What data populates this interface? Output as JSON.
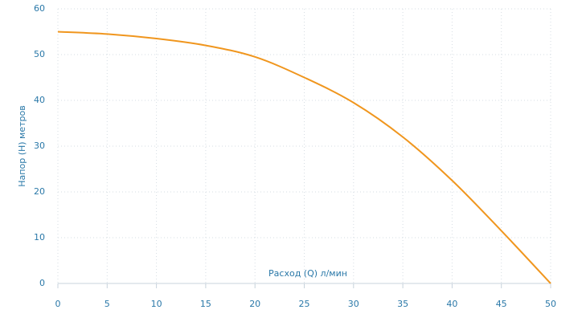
{
  "chart_data": {
    "type": "line",
    "x_label": "Расход (Q) л/мин",
    "y_label": "Напор (H) метров",
    "x": [
      0,
      5,
      10,
      15,
      20,
      25,
      30,
      35,
      40,
      45,
      50
    ],
    "series": [
      {
        "color": "#f0961e",
        "values": [
          55,
          54.5,
          53.5,
          52,
          49.5,
          45,
          39.5,
          32,
          22.5,
          11.5,
          0
        ]
      }
    ],
    "xlim": [
      0,
      50
    ],
    "xticks": [
      0,
      5,
      10,
      15,
      20,
      25,
      30,
      35,
      40,
      45,
      50
    ],
    "ylim": [
      0,
      60
    ],
    "yticks": [
      0,
      10,
      20,
      30,
      40,
      50,
      60
    ],
    "grid": true
  }
}
